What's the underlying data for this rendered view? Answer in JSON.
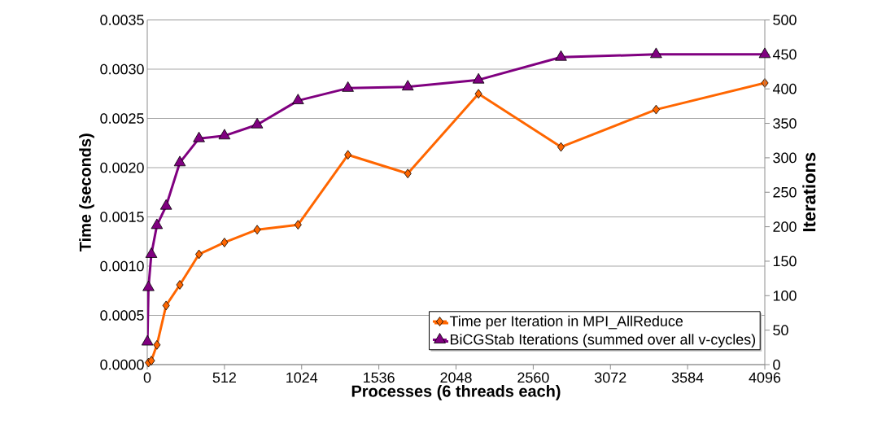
{
  "chart_data": {
    "type": "line",
    "xlabel": "Processes (6 threads each)",
    "ylabel": "Time (seconds)",
    "y2label": "Iterations",
    "xlim": [
      0,
      4096
    ],
    "xticks": [
      0,
      512,
      1024,
      1536,
      2048,
      2560,
      3072,
      3584,
      4096
    ],
    "ylim": [
      0,
      0.0035
    ],
    "yticks": [
      {
        "value": 0,
        "label": "0.0000"
      },
      {
        "value": 0.0005,
        "label": "0.0005"
      },
      {
        "value": 0.001,
        "label": "0.0010"
      },
      {
        "value": 0.0015,
        "label": "0.0015"
      },
      {
        "value": 0.002,
        "label": "0.0020"
      },
      {
        "value": 0.0025,
        "label": "0.0025"
      },
      {
        "value": 0.003,
        "label": "0.0030"
      },
      {
        "value": 0.0035,
        "label": "0.0035"
      }
    ],
    "y2lim": [
      0,
      500
    ],
    "y2ticks": [
      0,
      50,
      100,
      150,
      200,
      250,
      300,
      350,
      400,
      450,
      500
    ],
    "grid": "y",
    "legend": "bottom right",
    "line_style": "solid",
    "x": [
      1,
      8,
      27,
      64,
      125,
      216,
      343,
      512,
      729,
      1000,
      1331,
      1728,
      2197,
      2744,
      3375,
      4096
    ],
    "series": [
      {
        "name": "Time per Iteration in MPI_AllReduce",
        "color": "#ff6600",
        "marker": "diamond",
        "values": [
          null,
          2e-05,
          4e-05,
          0.0002,
          0.0006,
          0.00081,
          0.00112,
          0.00124,
          0.00137,
          0.00142,
          0.00213,
          0.00194,
          0.00275,
          0.00221,
          0.00259,
          0.00286
        ]
      },
      {
        "name": "BiCGStab Iterations (summed over all v-cycles)",
        "color": "#800080",
        "marker": "triangle",
        "axis": "y2",
        "values": [
          33,
          112,
          160,
          202,
          230,
          293,
          328,
          332,
          348,
          383,
          401,
          403,
          413,
          446,
          450,
          450
        ]
      }
    ]
  }
}
